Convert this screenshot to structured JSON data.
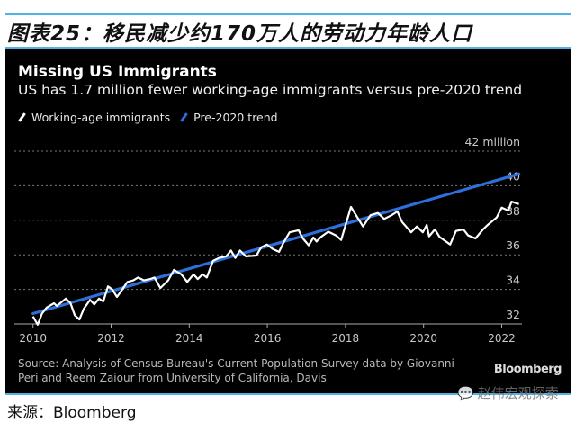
{
  "figure_title": "图表25：移民减少约170万人的劳动力年龄人口",
  "source_footer": "来源：Bloomberg",
  "watermark": "赵伟宏观探索",
  "chart_data": {
    "type": "line",
    "title": "Missing US Immigrants",
    "subtitle": "US has 1.7 million fewer working-age immigrants versus pre-2020 trend",
    "ylabel": "42 million",
    "ylim": [
      32,
      42
    ],
    "xlim": [
      2010,
      2022.6
    ],
    "y_ticks": [
      "32",
      "34",
      "36",
      "38",
      "40"
    ],
    "y_top_label": "42 million",
    "x_ticks": [
      "2010",
      "2012",
      "2014",
      "2016",
      "2018",
      "2020",
      "2022"
    ],
    "grid": true,
    "legend_position": "top-left",
    "colors": {
      "immigrants": "#ffffff",
      "trend": "#2f6fdc",
      "background": "#000000",
      "grid": "#777777"
    },
    "series": [
      {
        "name": "Working-age immigrants",
        "x": [
          2010.0,
          2010.12,
          2010.23,
          2010.35,
          2010.54,
          2010.61,
          2010.84,
          2010.96,
          2011.07,
          2011.19,
          2011.3,
          2011.46,
          2011.57,
          2011.69,
          2011.8,
          2011.92,
          2012.03,
          2012.15,
          2012.26,
          2012.42,
          2012.57,
          2012.69,
          2012.84,
          2013.0,
          2013.11,
          2013.26,
          2013.46,
          2013.61,
          2013.8,
          2013.95,
          2014.11,
          2014.22,
          2014.34,
          2014.45,
          2014.61,
          2014.76,
          2014.95,
          2015.07,
          2015.18,
          2015.3,
          2015.45,
          2015.72,
          2015.84,
          2015.99,
          2016.14,
          2016.3,
          2016.41,
          2016.57,
          2016.8,
          2016.91,
          2017.06,
          2017.18,
          2017.26,
          2017.37,
          2017.56,
          2017.76,
          2017.89,
          2018.14,
          2018.33,
          2018.45,
          2018.64,
          2018.83,
          2018.99,
          2019.18,
          2019.33,
          2019.45,
          2019.68,
          2019.83,
          2019.98,
          2020.08,
          2020.14,
          2020.29,
          2020.41,
          2020.68,
          2020.83,
          2021.02,
          2021.14,
          2021.33,
          2021.52,
          2021.64,
          2021.87,
          2022.0,
          2022.17,
          2022.25,
          2022.44
        ],
        "values": [
          32.43,
          31.96,
          32.6,
          32.95,
          33.2,
          33.04,
          33.47,
          33.2,
          32.5,
          32.26,
          32.87,
          33.39,
          33.13,
          33.47,
          33.3,
          34.17,
          34.0,
          33.56,
          33.91,
          34.43,
          34.52,
          34.69,
          34.52,
          34.6,
          34.69,
          34.08,
          34.52,
          35.13,
          34.87,
          34.43,
          34.87,
          34.6,
          34.87,
          34.69,
          35.65,
          35.82,
          35.91,
          36.25,
          35.82,
          36.25,
          35.91,
          35.96,
          36.43,
          36.6,
          36.34,
          36.17,
          36.69,
          37.3,
          37.42,
          36.95,
          36.55,
          37.0,
          36.77,
          37.03,
          37.34,
          37.12,
          36.86,
          38.77,
          38.08,
          37.64,
          38.29,
          38.42,
          38.08,
          38.29,
          38.51,
          37.9,
          37.3,
          37.64,
          37.3,
          37.73,
          37.07,
          37.47,
          37.03,
          36.6,
          37.38,
          37.47,
          37.12,
          36.95,
          37.47,
          37.73,
          38.16,
          38.73,
          38.56,
          39.08,
          38.94
        ]
      },
      {
        "name": "Pre-2020 trend",
        "x": [
          2010.0,
          2022.44
        ],
        "values": [
          32.6,
          40.68
        ]
      }
    ],
    "source": [
      "Source: Analysis of Census Bureau's Current Population Survey data by Giovanni",
      "Peri and Reem Zaiour from University of California, Davis"
    ],
    "brand": "Bloomberg"
  }
}
